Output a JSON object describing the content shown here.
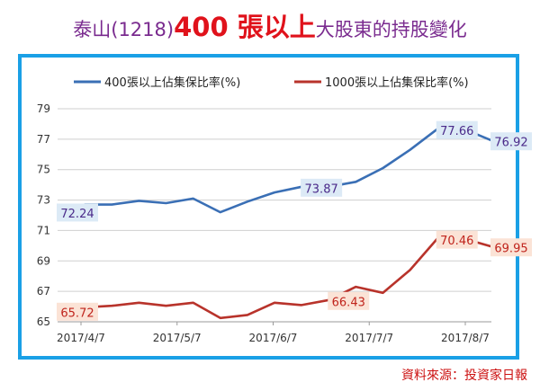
{
  "title": {
    "prefix": "泰山(1218)",
    "main": "400 張以上",
    "suffix": "大股東的持股變化"
  },
  "source_note": "資料來源：投資家日報",
  "colors": {
    "frame": "#1aa0e6",
    "series1": "#3a6fb5",
    "series2": "#b8332b",
    "title_purple": "#7a2b8f",
    "title_red": "#e0121b"
  },
  "chart_data": {
    "type": "line",
    "ylim": [
      65,
      79
    ],
    "yticks": [
      65,
      67,
      69,
      71,
      73,
      75,
      77,
      79
    ],
    "xtick_labels": [
      "2017/4/7",
      "2017/5/7",
      "2017/6/7",
      "2017/7/7",
      "2017/8/7"
    ],
    "legend_position": "top",
    "grid": true,
    "series": [
      {
        "name": "400張以上佔集保比率(%)",
        "color": "#3a6fb5",
        "values": [
          72.24,
          72.7,
          72.7,
          72.95,
          72.8,
          73.1,
          72.2,
          72.9,
          73.5,
          73.87,
          73.87,
          74.2,
          75.1,
          76.3,
          77.66,
          77.66,
          76.92
        ],
        "labels": [
          {
            "index": 0,
            "text": "72.24"
          },
          {
            "index": 9,
            "text": "73.87"
          },
          {
            "index": 14,
            "text": "77.66"
          },
          {
            "index": 16,
            "text": "76.92"
          }
        ]
      },
      {
        "name": "1000張以上佔集保比率(%)",
        "color": "#b8332b",
        "values": [
          65.72,
          65.95,
          66.05,
          66.25,
          66.05,
          66.25,
          65.25,
          65.45,
          66.25,
          66.1,
          66.43,
          67.3,
          66.9,
          68.4,
          70.46,
          70.46,
          69.95
        ],
        "labels": [
          {
            "index": 0,
            "text": "65.72"
          },
          {
            "index": 10,
            "text": "66.43"
          },
          {
            "index": 14,
            "text": "70.46"
          },
          {
            "index": 16,
            "text": "69.95"
          }
        ]
      }
    ]
  }
}
